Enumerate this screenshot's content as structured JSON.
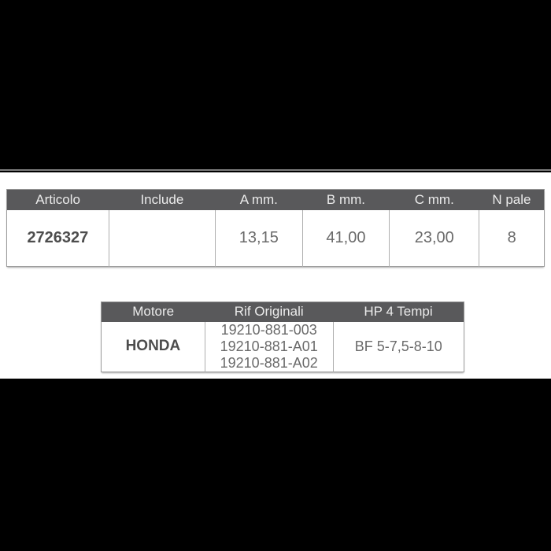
{
  "colors": {
    "letterbox": "#000000",
    "content_background": "#ffffff",
    "table_header_background": "#59595b",
    "table_header_text": "#ebebeb",
    "table_cell_text": "#6a6a6a",
    "table_bold_text": "#4d4d4d",
    "table_border": "#9c9c9c"
  },
  "product_table": {
    "headers": [
      "Articolo",
      "Include",
      "A mm.",
      "B mm.",
      "C mm.",
      "N pale"
    ],
    "row": {
      "articolo": "2726327",
      "include": "",
      "a_mm": "13,15",
      "b_mm": "41,00",
      "c_mm": "23,00",
      "n_pale": "8"
    }
  },
  "engine_table": {
    "headers": [
      "Motore",
      "Rif Originali",
      "HP 4 Tempi"
    ],
    "row": {
      "motore": "HONDA",
      "rif_originali": [
        "19210-881-003",
        "19210-881-A01",
        "19210-881-A02"
      ],
      "hp_4_tempi": "BF 5-7,5-8-10"
    }
  }
}
